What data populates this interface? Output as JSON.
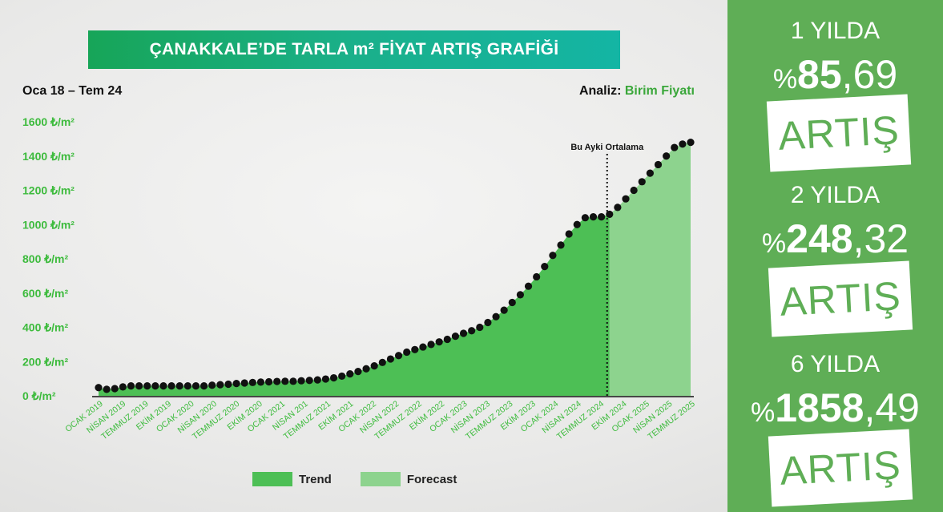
{
  "header": {
    "title": "ÇANAKKALE’DE TARLA m² FİYAT ARTIŞ GRAFİĞİ",
    "range": "Oca 18 – Tem 24",
    "analysis_label": "Analiz:",
    "analysis_value": "Birim Fiyatı"
  },
  "chart_data": {
    "type": "area",
    "ylim": [
      0,
      1600
    ],
    "yticks": [
      "0 ₺/m²",
      "200 ₺/m²",
      "400 ₺/m²",
      "600 ₺/m²",
      "800 ₺/m²",
      "1000 ₺/m²",
      "1200 ₺/m²",
      "1400 ₺/m²",
      "1600 ₺/m²"
    ],
    "x_tick_labels": [
      "OCAK 2019",
      "NİSAN 2019",
      "TEMMUZ 2019",
      "EKİM 2019",
      "OCAK 2020",
      "NİSAN 2020",
      "TEMMUZ 2020",
      "EKİM 2020",
      "OCAK 2021",
      "NİSAN 201",
      "TEMMUZ 2021",
      "EKİM 2021",
      "OCAK 2022",
      "NİSAN 2022",
      "TEMMUZ 2022",
      "EKİM 2022",
      "OCAK 2023",
      "NİSAN 2023",
      "TEMMUZ 2023",
      "EKİM 2023",
      "OCAK 2024",
      "NİSAN 2024",
      "TEMMUZ 2024",
      "EKİM 2024",
      "OCAK 2025",
      "NİSAN 2025",
      "TEMMUZ 2025"
    ],
    "values": [
      48,
      38,
      42,
      52,
      58,
      58,
      58,
      58,
      58,
      58,
      58,
      58,
      58,
      58,
      62,
      65,
      68,
      72,
      75,
      78,
      80,
      82,
      84,
      85,
      85,
      88,
      90,
      93,
      98,
      105,
      115,
      128,
      142,
      158,
      175,
      195,
      215,
      235,
      255,
      270,
      285,
      300,
      315,
      330,
      348,
      365,
      380,
      400,
      428,
      462,
      500,
      545,
      590,
      640,
      695,
      755,
      820,
      880,
      945,
      1000,
      1040,
      1045,
      1045,
      1060,
      1100,
      1150,
      1200,
      1250,
      1300,
      1350,
      1400,
      1450,
      1470,
      1480
    ],
    "forecast_start_index": 63,
    "annotation": "Bu Ayki Ortalama",
    "legend": [
      {
        "name": "Trend",
        "color": "#4dbf55"
      },
      {
        "name": "Forecast",
        "color": "#8dd38e"
      }
    ]
  },
  "side": {
    "blocks": [
      {
        "head": "1 YILDA",
        "pct": "%",
        "int": "85",
        "dec": ",69",
        "artis": "ARTIŞ"
      },
      {
        "head": "2 YILDA",
        "pct": "%",
        "int": "248",
        "dec": ",32",
        "artis": "ARTIŞ"
      },
      {
        "head": "6 YILDA",
        "pct": "%",
        "int": "1858",
        "dec": ",49",
        "artis": "ARTIŞ"
      }
    ]
  }
}
